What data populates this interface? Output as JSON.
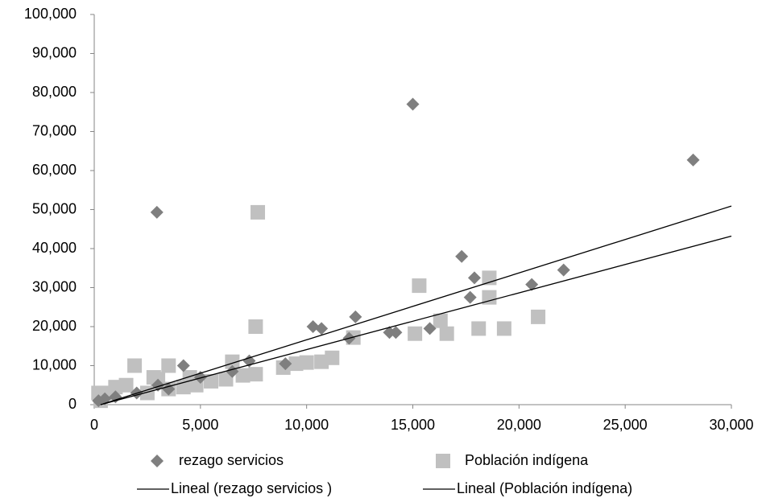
{
  "chart_data": {
    "type": "scatter",
    "xlim": [
      0,
      30000
    ],
    "xticks": [
      0,
      {
        "value": 5000,
        "label": "5,000"
      },
      {
        "value": 10000,
        "label": "10,000"
      },
      {
        "value": 15000,
        "label": "15,000"
      },
      {
        "value": 20000,
        "label": "20,000"
      },
      {
        "value": 25000,
        "label": "25,000"
      },
      {
        "value": 30000,
        "label": "30,000"
      }
    ],
    "ylim": [
      0,
      100000
    ],
    "yticks": [
      0,
      {
        "value": 10000,
        "label": "10,000"
      },
      {
        "value": 20000,
        "label": "20,000"
      },
      {
        "value": 30000,
        "label": "30,000"
      },
      {
        "value": 40000,
        "label": "40,000"
      },
      {
        "value": 50000,
        "label": "50,000"
      },
      {
        "value": 60000,
        "label": "60,000"
      },
      {
        "value": 70000,
        "label": "70,000"
      },
      {
        "value": 80000,
        "label": "80,000"
      },
      {
        "value": 90000,
        "label": "90,000"
      },
      {
        "value": 100000,
        "label": "100,000"
      }
    ],
    "series": [
      {
        "name": "rezago servicios",
        "color": "#7f7f7f",
        "marker": "diamond",
        "x": [
          2950,
          15000,
          28200,
          17300,
          17900,
          17700,
          20600,
          22100,
          10300,
          10700,
          12300,
          13900,
          14200,
          15800,
          12000,
          7300,
          4200,
          3000,
          2000,
          1000,
          500,
          200,
          5000,
          9000,
          6500,
          3500
        ],
        "values": [
          49300,
          77000,
          62700,
          38000,
          32500,
          27500,
          30800,
          34500,
          20000,
          19500,
          22500,
          18500,
          18500,
          19500,
          17000,
          11200,
          10000,
          5000,
          3000,
          2000,
          1500,
          1000,
          7000,
          10500,
          8500,
          4000
        ]
      },
      {
        "name": "Población indígena",
        "color": "#c0c0c0",
        "marker": "square",
        "x": [
          7700,
          15300,
          18600,
          18600,
          16300,
          20900,
          16600,
          18100,
          19300,
          15100,
          7600,
          12200,
          11200,
          10700,
          10000,
          9500,
          8900,
          7600,
          6500,
          7000,
          6200,
          5500,
          4800,
          4200,
          3500,
          1900,
          3000,
          2800,
          1500,
          1000,
          500,
          200,
          300,
          2500,
          3500,
          4500
        ],
        "values": [
          49300,
          30500,
          32500,
          27500,
          21500,
          22500,
          18200,
          19500,
          19500,
          18200,
          20000,
          17200,
          12000,
          11000,
          10800,
          10500,
          9500,
          7800,
          11000,
          7500,
          6500,
          6000,
          5000,
          4500,
          10000,
          10000,
          6500,
          7000,
          5000,
          4500,
          3000,
          3000,
          1000,
          3000,
          4000,
          7000
        ]
      }
    ],
    "trendlines": [
      {
        "name": "Lineal (rezago servicios )",
        "color": "#000000",
        "x": [
          300,
          30000
        ],
        "values": [
          0,
          50900
        ]
      },
      {
        "name": "Lineal (Población indígena)",
        "color": "#000000",
        "x": [
          300,
          30000
        ],
        "values": [
          0,
          43200
        ]
      }
    ]
  }
}
